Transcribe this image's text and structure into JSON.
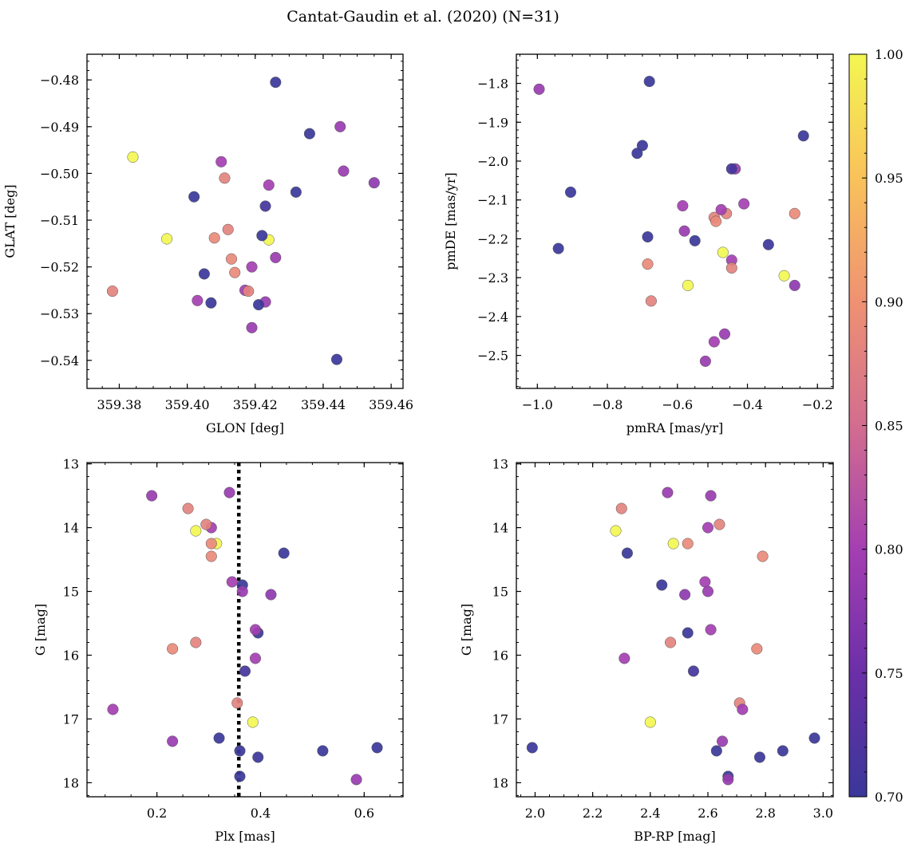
{
  "colors": {
    "cmap": [
      "#3a3799",
      "#6b2fa8",
      "#a43fb2",
      "#d26d8f",
      "#ef9173",
      "#f9c25a",
      "#f3f752"
    ],
    "vline": "#000000",
    "marker_edge": "#555555"
  },
  "chart_data": {
    "title": "Cantat-Gaudin et al. (2020) (N=31)",
    "type": "scatter",
    "color_variable_range": [
      0.7,
      1.0
    ],
    "colorbar_ticks": [
      "0.70",
      "0.75",
      "0.80",
      "0.85",
      "0.90",
      "0.95",
      "1.00"
    ],
    "stars": [
      {
        "glon": 359.426,
        "glat": -0.4805,
        "pmra": -0.68,
        "pmde": -1.795,
        "plx": 0.36,
        "g": 17.9,
        "bprp": 2.67,
        "p": 0.7
      },
      {
        "glon": 359.436,
        "glat": -0.4915,
        "pmra": -0.24,
        "pmde": -1.935,
        "plx": 0.445,
        "g": 14.4,
        "bprp": 2.32,
        "p": 0.7
      },
      {
        "glon": 359.445,
        "glat": -0.49,
        "pmra": -0.995,
        "pmde": -1.815,
        "plx": 0.19,
        "g": 13.5,
        "bprp": 2.61,
        "p": 0.79
      },
      {
        "glon": 359.384,
        "glat": -0.4965,
        "pmra": -0.47,
        "pmde": -2.235,
        "plx": 0.275,
        "g": 14.05,
        "bprp": 2.28,
        "p": 1.0
      },
      {
        "glon": 359.41,
        "glat": -0.4975,
        "pmra": -0.585,
        "pmde": -2.115,
        "plx": 0.305,
        "g": 14.0,
        "bprp": 2.6,
        "p": 0.8
      },
      {
        "glon": 359.411,
        "glat": -0.501,
        "pmra": -0.495,
        "pmde": -2.145,
        "plx": 0.26,
        "g": 13.7,
        "bprp": 2.3,
        "p": 0.88
      },
      {
        "glon": 359.446,
        "glat": -0.4995,
        "pmra": -0.435,
        "pmde": -2.02,
        "plx": 0.34,
        "g": 13.45,
        "bprp": 2.46,
        "p": 0.79
      },
      {
        "glon": 359.455,
        "glat": -0.502,
        "pmra": -0.265,
        "pmde": -2.32,
        "plx": 0.42,
        "g": 15.05,
        "bprp": 2.52,
        "p": 0.78
      },
      {
        "glon": 359.424,
        "glat": -0.5025,
        "pmra": -0.41,
        "pmde": -2.11,
        "plx": 0.345,
        "g": 14.85,
        "bprp": 2.59,
        "p": 0.8
      },
      {
        "glon": 359.402,
        "glat": -0.505,
        "pmra": -0.7,
        "pmde": -1.96,
        "plx": 0.365,
        "g": 14.9,
        "bprp": 2.44,
        "p": 0.7
      },
      {
        "glon": 359.432,
        "glat": -0.504,
        "pmra": -0.715,
        "pmde": -1.98,
        "plx": 0.395,
        "g": 15.65,
        "bprp": 2.53,
        "p": 0.7
      },
      {
        "glon": 359.423,
        "glat": -0.507,
        "pmra": -0.445,
        "pmde": -2.02,
        "plx": 0.37,
        "g": 16.25,
        "bprp": 2.55,
        "p": 0.71
      },
      {
        "glon": 359.394,
        "glat": -0.514,
        "pmra": -0.57,
        "pmde": -2.32,
        "plx": 0.315,
        "g": 14.25,
        "bprp": 2.48,
        "p": 1.0
      },
      {
        "glon": 359.424,
        "glat": -0.5142,
        "pmra": -0.295,
        "pmde": -2.295,
        "plx": 0.385,
        "g": 17.05,
        "bprp": 2.4,
        "p": 1.0
      },
      {
        "glon": 359.412,
        "glat": -0.512,
        "pmra": -0.46,
        "pmde": -2.135,
        "plx": 0.295,
        "g": 13.95,
        "bprp": 2.64,
        "p": 0.88
      },
      {
        "glon": 359.408,
        "glat": -0.5138,
        "pmra": -0.265,
        "pmde": -2.135,
        "plx": 0.305,
        "g": 14.25,
        "bprp": 2.53,
        "p": 0.89
      },
      {
        "glon": 359.422,
        "glat": -0.5133,
        "pmra": -0.55,
        "pmde": -2.205,
        "plx": 0.36,
        "g": 17.5,
        "bprp": 2.63,
        "p": 0.7
      },
      {
        "glon": 359.413,
        "glat": -0.5183,
        "pmra": -0.49,
        "pmde": -2.155,
        "plx": 0.305,
        "g": 14.45,
        "bprp": 2.79,
        "p": 0.89
      },
      {
        "glon": 359.426,
        "glat": -0.518,
        "pmra": -0.58,
        "pmde": -2.18,
        "plx": 0.365,
        "g": 15.0,
        "bprp": 2.6,
        "p": 0.79
      },
      {
        "glon": 359.419,
        "glat": -0.52,
        "pmra": -0.475,
        "pmde": -2.125,
        "plx": 0.39,
        "g": 15.6,
        "bprp": 2.61,
        "p": 0.8
      },
      {
        "glon": 359.414,
        "glat": -0.5212,
        "pmra": -0.685,
        "pmde": -2.265,
        "plx": 0.23,
        "g": 15.9,
        "bprp": 2.77,
        "p": 0.89
      },
      {
        "glon": 359.405,
        "glat": -0.5215,
        "pmra": -0.685,
        "pmde": -2.195,
        "plx": 0.395,
        "g": 17.6,
        "bprp": 2.78,
        "p": 0.7
      },
      {
        "glon": 359.417,
        "glat": -0.525,
        "pmra": -0.445,
        "pmde": -2.255,
        "plx": 0.39,
        "g": 16.05,
        "bprp": 2.31,
        "p": 0.8
      },
      {
        "glon": 359.418,
        "glat": -0.5252,
        "pmra": -0.445,
        "pmde": -2.275,
        "plx": 0.275,
        "g": 15.8,
        "bprp": 2.47,
        "p": 0.88
      },
      {
        "glon": 359.378,
        "glat": -0.5252,
        "pmra": -0.675,
        "pmde": -2.36,
        "plx": 0.355,
        "g": 16.75,
        "bprp": 2.71,
        "p": 0.88
      },
      {
        "glon": 359.403,
        "glat": -0.5272,
        "pmra": -0.495,
        "pmde": -2.465,
        "plx": 0.115,
        "g": 16.85,
        "bprp": 2.72,
        "p": 0.8
      },
      {
        "glon": 359.423,
        "glat": -0.5275,
        "pmra": -0.465,
        "pmde": -2.445,
        "plx": 0.23,
        "g": 17.35,
        "bprp": 2.65,
        "p": 0.79
      },
      {
        "glon": 359.407,
        "glat": -0.5277,
        "pmra": -0.34,
        "pmde": -2.215,
        "plx": 0.32,
        "g": 17.3,
        "bprp": 2.97,
        "p": 0.7
      },
      {
        "glon": 359.421,
        "glat": -0.5281,
        "pmra": -0.94,
        "pmde": -2.225,
        "plx": 0.52,
        "g": 17.5,
        "bprp": 2.86,
        "p": 0.7
      },
      {
        "glon": 359.419,
        "glat": -0.533,
        "pmra": -0.52,
        "pmde": -2.515,
        "plx": 0.585,
        "g": 17.95,
        "bprp": 2.67,
        "p": 0.79
      },
      {
        "glon": 359.444,
        "glat": -0.5398,
        "pmra": -0.905,
        "pmde": -2.08,
        "plx": 0.625,
        "g": 17.45,
        "bprp": 1.99,
        "p": 0.7
      }
    ],
    "panels": [
      {
        "name": "sky",
        "xkey": "glon",
        "ykey": "glat",
        "xlabel": "GLON [deg]",
        "ylabel": "GLAT [deg]",
        "xlim": [
          359.3705,
          359.4635
        ],
        "ylim": [
          -0.546,
          -0.4745
        ],
        "yinvert": false,
        "xticks": [
          359.38,
          359.4,
          359.42,
          359.44,
          359.46
        ],
        "xtick_labels": [
          "359.38",
          "359.40",
          "359.42",
          "359.44",
          "359.46"
        ],
        "yticks": [
          -0.48,
          -0.49,
          -0.5,
          -0.51,
          -0.52,
          -0.53,
          -0.54
        ],
        "ytick_labels": [
          "−0.48",
          "−0.49",
          "−0.50",
          "−0.51",
          "−0.52",
          "−0.53",
          "−0.54"
        ],
        "xminor": 0.005,
        "yminor": 0.002
      },
      {
        "name": "pm",
        "xkey": "pmra",
        "ykey": "pmde",
        "xlabel": "pmRA [mas/yr]",
        "ylabel": "pmDE [mas/yr]",
        "xlim": [
          -1.06,
          -0.155
        ],
        "ylim": [
          -2.585,
          -1.725
        ],
        "yinvert": false,
        "xticks": [
          -1.0,
          -0.8,
          -0.6,
          -0.4,
          -0.2
        ],
        "xtick_labels": [
          "−1.0",
          "−0.8",
          "−0.6",
          "−0.4",
          "−0.2"
        ],
        "yticks": [
          -1.8,
          -1.9,
          -2.0,
          -2.1,
          -2.2,
          -2.3,
          -2.4,
          -2.5
        ],
        "ytick_labels": [
          "−1.8",
          "−1.9",
          "−2.0",
          "−2.1",
          "−2.2",
          "−2.3",
          "−2.4",
          "−2.5"
        ],
        "xminor": 0.05,
        "yminor": 0.02
      },
      {
        "name": "plx",
        "xkey": "plx",
        "ykey": "g",
        "xlabel": "Plx [mas]",
        "ylabel": "G [mag]",
        "xlim": [
          0.065,
          0.675
        ],
        "ylim": [
          12.98,
          18.22
        ],
        "yinvert": true,
        "xticks": [
          0.2,
          0.4,
          0.6
        ],
        "xtick_labels": [
          "0.2",
          "0.4",
          "0.6"
        ],
        "yticks": [
          13,
          14,
          15,
          16,
          17,
          18
        ],
        "ytick_labels": [
          "13",
          "14",
          "15",
          "16",
          "17",
          "18"
        ],
        "xminor": 0.05,
        "yminor": 0.2,
        "vline": 0.358
      },
      {
        "name": "cmd",
        "xkey": "bprp",
        "ykey": "g",
        "xlabel": "BP-RP [mag]",
        "ylabel": "G [mag]",
        "xlim": [
          1.935,
          3.035
        ],
        "ylim": [
          12.98,
          18.22
        ],
        "yinvert": true,
        "xticks": [
          2.0,
          2.2,
          2.4,
          2.6,
          2.8,
          3.0
        ],
        "xtick_labels": [
          "2.0",
          "2.2",
          "2.4",
          "2.6",
          "2.8",
          "3.0"
        ],
        "yticks": [
          13,
          14,
          15,
          16,
          17,
          18
        ],
        "ytick_labels": [
          "13",
          "14",
          "15",
          "16",
          "17",
          "18"
        ],
        "xminor": 0.05,
        "yminor": 0.2
      }
    ]
  }
}
